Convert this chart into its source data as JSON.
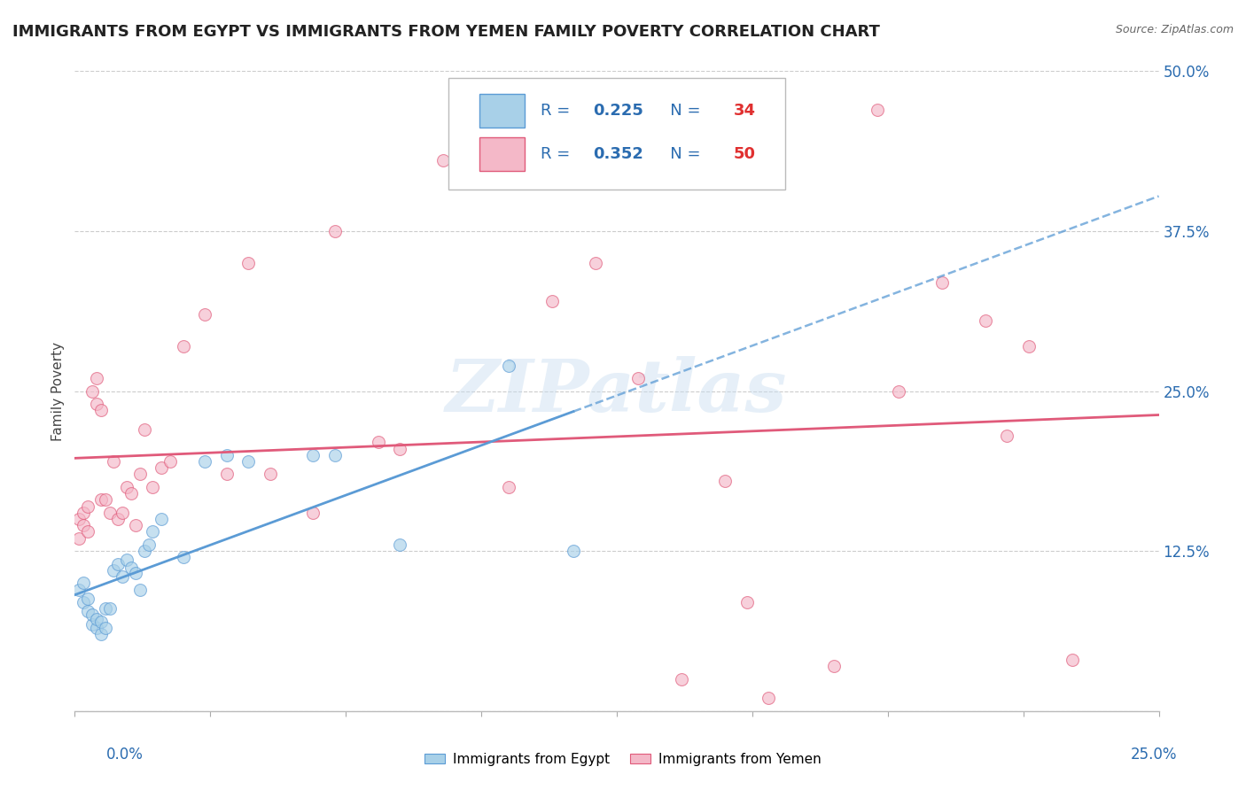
{
  "title": "IMMIGRANTS FROM EGYPT VS IMMIGRANTS FROM YEMEN FAMILY POVERTY CORRELATION CHART",
  "source": "Source: ZipAtlas.com",
  "ylabel": "Family Poverty",
  "yticks": [
    0.0,
    0.125,
    0.25,
    0.375,
    0.5
  ],
  "ytick_labels": [
    "",
    "12.5%",
    "25.0%",
    "37.5%",
    "50.0%"
  ],
  "xlim": [
    0.0,
    0.25
  ],
  "ylim": [
    0.0,
    0.5
  ],
  "egypt_R": 0.225,
  "egypt_N": 34,
  "yemen_R": 0.352,
  "yemen_N": 50,
  "egypt_color": "#a8d0e8",
  "yemen_color": "#f4b8c8",
  "egypt_line_color": "#5b9bd5",
  "yemen_line_color": "#e05a7a",
  "legend_R_N_color": "#2b6cb0",
  "background_color": "#ffffff",
  "grid_color": "#cccccc",
  "egypt_x": [
    0.001,
    0.002,
    0.002,
    0.003,
    0.003,
    0.004,
    0.004,
    0.005,
    0.005,
    0.006,
    0.006,
    0.007,
    0.007,
    0.008,
    0.009,
    0.01,
    0.011,
    0.012,
    0.013,
    0.014,
    0.015,
    0.016,
    0.017,
    0.018,
    0.02,
    0.025,
    0.03,
    0.035,
    0.04,
    0.055,
    0.06,
    0.075,
    0.1,
    0.115
  ],
  "egypt_y": [
    0.095,
    0.085,
    0.1,
    0.078,
    0.088,
    0.068,
    0.075,
    0.065,
    0.072,
    0.06,
    0.07,
    0.065,
    0.08,
    0.08,
    0.11,
    0.115,
    0.105,
    0.118,
    0.112,
    0.108,
    0.095,
    0.125,
    0.13,
    0.14,
    0.15,
    0.12,
    0.195,
    0.2,
    0.195,
    0.2,
    0.2,
    0.13,
    0.27,
    0.125
  ],
  "yemen_x": [
    0.001,
    0.001,
    0.002,
    0.002,
    0.003,
    0.003,
    0.004,
    0.005,
    0.005,
    0.006,
    0.006,
    0.007,
    0.008,
    0.009,
    0.01,
    0.011,
    0.012,
    0.013,
    0.014,
    0.015,
    0.016,
    0.018,
    0.02,
    0.022,
    0.025,
    0.03,
    0.035,
    0.04,
    0.045,
    0.055,
    0.06,
    0.07,
    0.075,
    0.085,
    0.1,
    0.11,
    0.12,
    0.13,
    0.14,
    0.15,
    0.155,
    0.16,
    0.175,
    0.185,
    0.19,
    0.2,
    0.21,
    0.215,
    0.22,
    0.23
  ],
  "yemen_y": [
    0.135,
    0.15,
    0.145,
    0.155,
    0.14,
    0.16,
    0.25,
    0.26,
    0.24,
    0.235,
    0.165,
    0.165,
    0.155,
    0.195,
    0.15,
    0.155,
    0.175,
    0.17,
    0.145,
    0.185,
    0.22,
    0.175,
    0.19,
    0.195,
    0.285,
    0.31,
    0.185,
    0.35,
    0.185,
    0.155,
    0.375,
    0.21,
    0.205,
    0.43,
    0.175,
    0.32,
    0.35,
    0.26,
    0.025,
    0.18,
    0.085,
    0.01,
    0.035,
    0.47,
    0.25,
    0.335,
    0.305,
    0.215,
    0.285,
    0.04
  ],
  "watermark": "ZIPatlas",
  "marker_size": 100,
  "marker_alpha": 0.65,
  "title_fontsize": 13,
  "axis_label_fontsize": 11,
  "tick_fontsize": 12
}
